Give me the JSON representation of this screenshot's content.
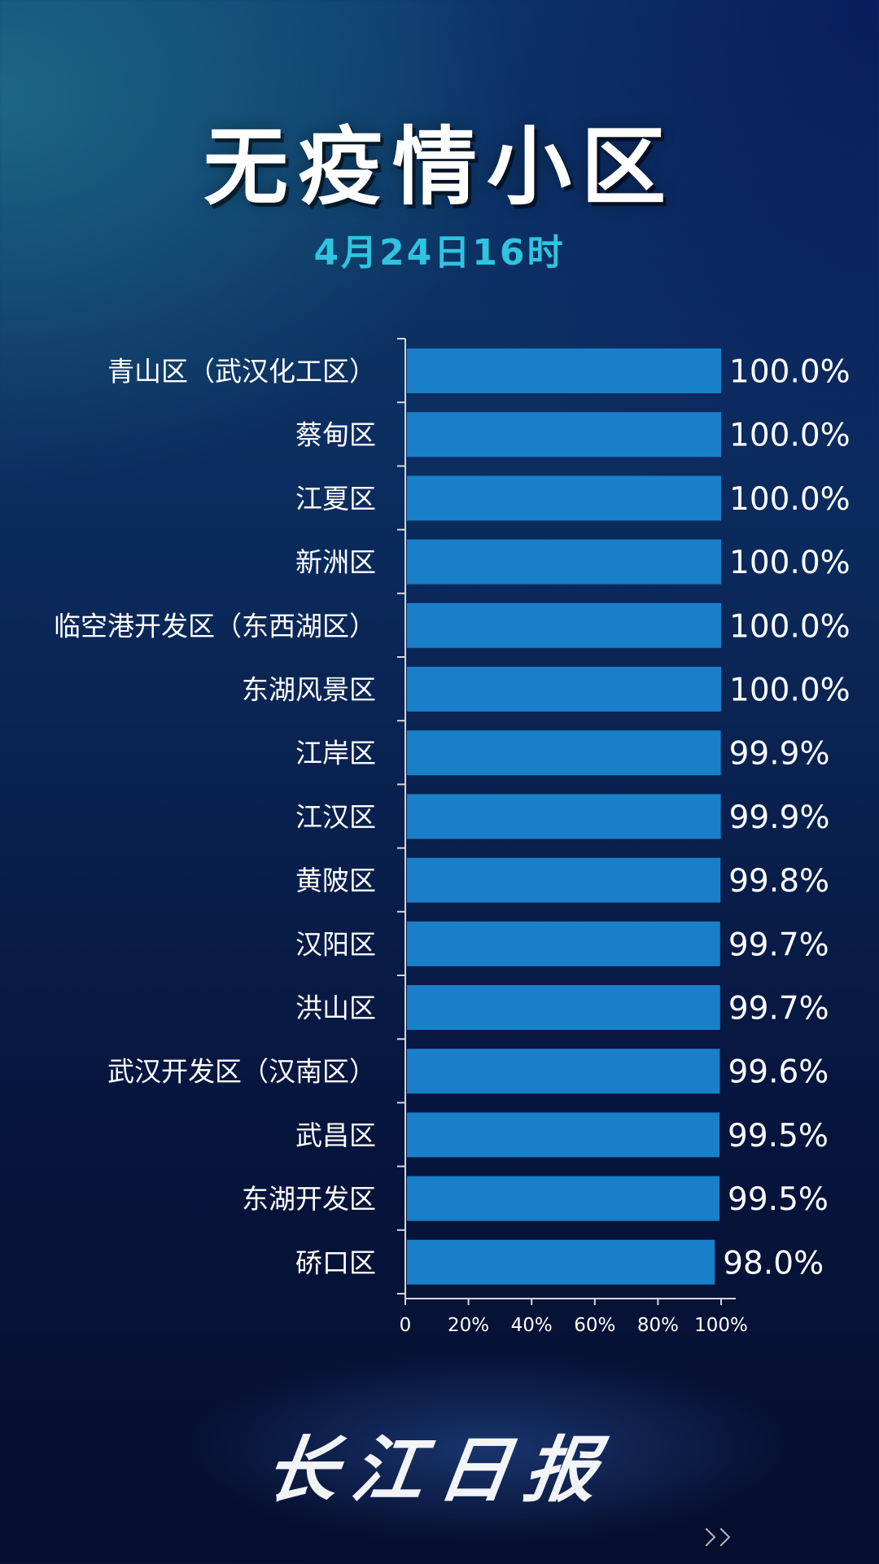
{
  "title": "无疫情小区",
  "subtitle": "4月24日16时",
  "logo_text": "长江日报",
  "colors": {
    "bar": "#1a7fc9",
    "title": "#ffffff",
    "subtitle": "#2fc4e0"
  },
  "chart_data": {
    "type": "bar",
    "orientation": "horizontal",
    "categories": [
      "青山区（武汉化工区）",
      "蔡甸区",
      "江夏区",
      "新洲区",
      "临空港开发区（东西湖区）",
      "东湖风景区",
      "江岸区",
      "江汉区",
      "黄陂区",
      "汉阳区",
      "洪山区",
      "武汉开发区（汉南区）",
      "武昌区",
      "东湖开发区",
      "硚口区"
    ],
    "values": [
      100.0,
      100.0,
      100.0,
      100.0,
      100.0,
      100.0,
      99.9,
      99.9,
      99.8,
      99.7,
      99.7,
      99.6,
      99.5,
      99.5,
      98.0
    ],
    "value_labels": [
      "100.0%",
      "100.0%",
      "100.0%",
      "100.0%",
      "100.0%",
      "100.0%",
      "99.9%",
      "99.9%",
      "99.8%",
      "99.7%",
      "99.7%",
      "99.6%",
      "99.5%",
      "99.5%",
      "98.0%"
    ],
    "x_ticks": [
      "0",
      "20%",
      "40%",
      "60%",
      "80%",
      "100%"
    ],
    "xlim": [
      0,
      100
    ],
    "title": "无疫情小区",
    "grid": false,
    "legend": "none"
  }
}
